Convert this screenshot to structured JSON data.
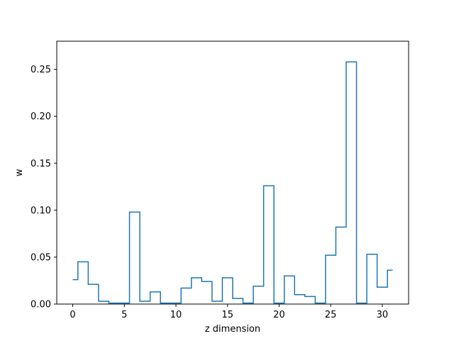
{
  "chart_data": {
    "type": "step",
    "xlabel": "z dimension",
    "ylabel": "w",
    "xlim": [
      -1.55,
      32.55
    ],
    "ylim": [
      0.0,
      0.28
    ],
    "xticks": [
      0,
      5,
      10,
      15,
      20,
      25,
      30
    ],
    "yticks": [
      0.0,
      0.05,
      0.1,
      0.15,
      0.2,
      0.25
    ],
    "ytick_labels": [
      "0.00",
      "0.05",
      "0.10",
      "0.15",
      "0.20",
      "0.25"
    ],
    "grid": false,
    "line_color": "#1f77b4",
    "x": [
      0,
      1,
      2,
      3,
      4,
      5,
      6,
      7,
      8,
      9,
      10,
      11,
      12,
      13,
      14,
      15,
      16,
      17,
      18,
      19,
      20,
      21,
      22,
      23,
      24,
      25,
      26,
      27,
      28,
      29,
      30,
      31
    ],
    "values": [
      0.026,
      0.045,
      0.021,
      0.003,
      0.001,
      0.001,
      0.098,
      0.003,
      0.013,
      0.001,
      0.001,
      0.017,
      0.028,
      0.024,
      0.003,
      0.028,
      0.006,
      0.001,
      0.019,
      0.126,
      0.001,
      0.03,
      0.01,
      0.008,
      0.001,
      0.052,
      0.082,
      0.258,
      0.001,
      0.053,
      0.018,
      0.036
    ]
  }
}
